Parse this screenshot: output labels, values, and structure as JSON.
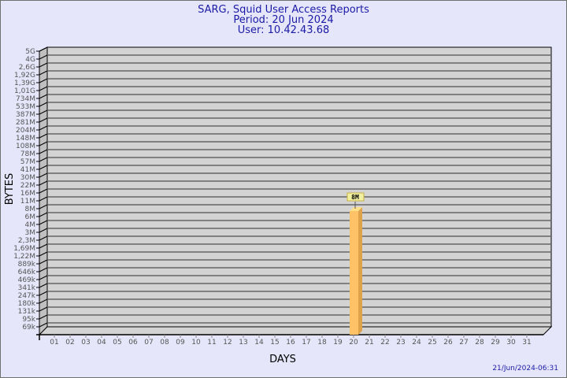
{
  "chart_data": {
    "type": "bar",
    "title": [
      "SARG, Squid User Access Reports",
      "Period: 20 Jun 2024",
      "User: 10.42.43.68"
    ],
    "xlabel": "DAYS",
    "ylabel": "BYTES",
    "y_scale": "log",
    "y_ticks": [
      "5G",
      "4G",
      "2,6G",
      "1,92G",
      "1,39G",
      "1,01G",
      "734M",
      "533M",
      "387M",
      "281M",
      "204M",
      "148M",
      "108M",
      "78M",
      "57M",
      "41M",
      "30M",
      "22M",
      "16M",
      "11M",
      "8M",
      "6M",
      "4M",
      "3M",
      "2,3M",
      "1,69M",
      "1,22M",
      "889k",
      "646k",
      "469k",
      "341k",
      "247k",
      "180k",
      "131k",
      "95k",
      "69k"
    ],
    "categories": [
      "01",
      "02",
      "03",
      "04",
      "05",
      "06",
      "07",
      "08",
      "09",
      "10",
      "11",
      "12",
      "13",
      "14",
      "15",
      "16",
      "17",
      "18",
      "19",
      "20",
      "21",
      "22",
      "23",
      "24",
      "25",
      "26",
      "27",
      "28",
      "29",
      "30",
      "31"
    ],
    "bars": [
      {
        "day": "20",
        "value": "8M",
        "label": "8M"
      }
    ],
    "grid": true,
    "colors": {
      "bar": "#ffc266",
      "bar_side": "#dda24a",
      "bar_top": "#ffe08a",
      "wall": "#d3d3d3",
      "background": "#e6e6fa",
      "title": "#1a1aa6"
    }
  },
  "footer": {
    "timestamp": "21/Jun/2024-06:31"
  }
}
